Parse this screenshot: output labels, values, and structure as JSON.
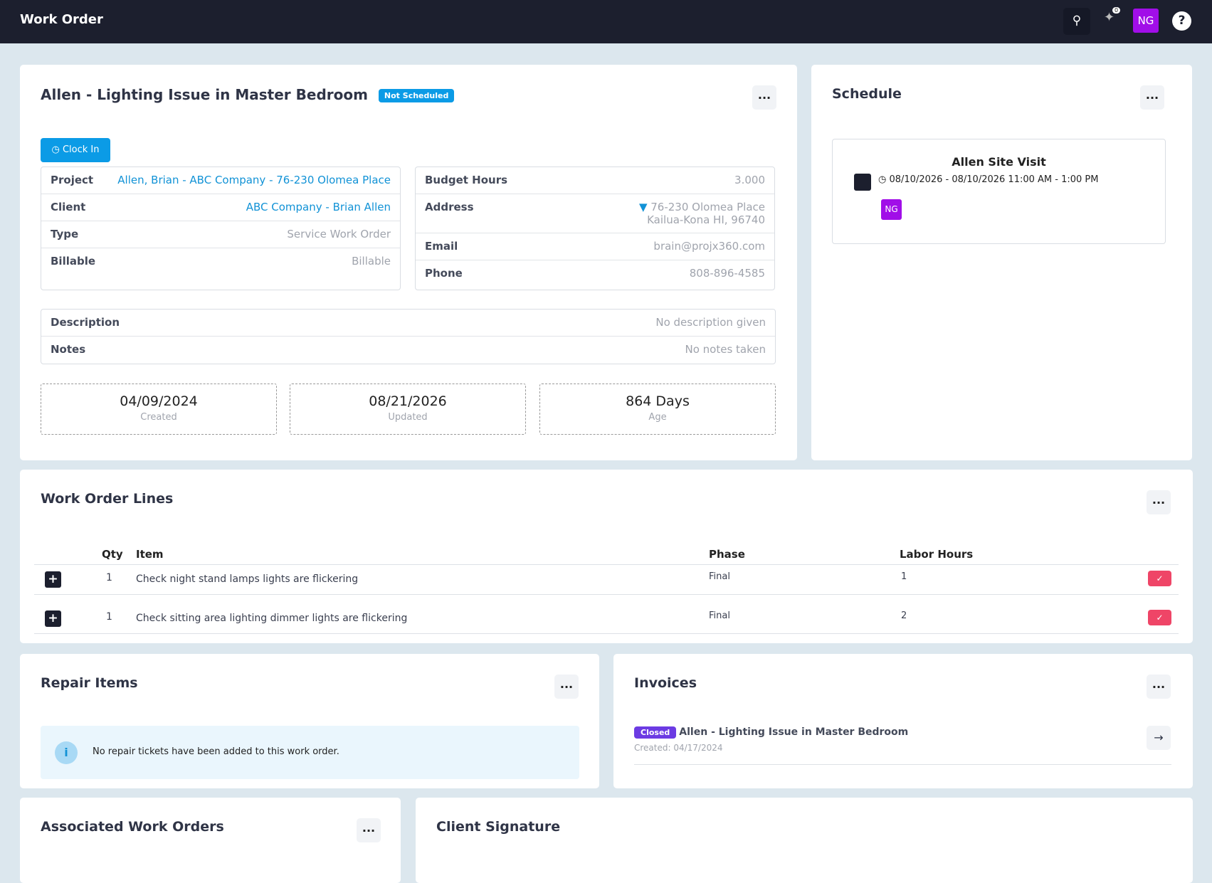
{
  "header": {
    "title": "Work Order",
    "notification_count": "0",
    "user_initials": "NG"
  },
  "work_order": {
    "title": "Allen - Lighting Issue in Master Bedroom",
    "status": "Not Scheduled",
    "clock_in": "Clock In",
    "details_left": [
      {
        "label": "Project",
        "value": "Allen, Brian - ABC Company - 76-230 Olomea Place"
      },
      {
        "label": "Client",
        "value": "ABC Company - Brian Allen"
      },
      {
        "label": "Type",
        "value": "Service Work Order"
      },
      {
        "label": "Billable",
        "value": "Billable"
      }
    ],
    "details_right": [
      {
        "label": "Budget Hours",
        "lines": [
          "3.000"
        ]
      },
      {
        "label": "Address",
        "lines": [
          "76-230 Olomea Place",
          "Kailua-Kona HI, 96740"
        ]
      },
      {
        "label": "Email",
        "lines": [
          "brain@projx360.com"
        ]
      },
      {
        "label": "Phone",
        "lines": [
          "808-896-4585"
        ]
      }
    ],
    "notes": [
      {
        "label": "Description",
        "value": "No description given"
      },
      {
        "label": "Notes",
        "value": "No notes taken"
      }
    ],
    "stats": [
      {
        "value": "04/09/2024",
        "label": "Created"
      },
      {
        "value": "08/21/2026",
        "label": "Updated"
      },
      {
        "value": "864 Days",
        "label": "Age"
      }
    ]
  },
  "schedule": {
    "title": "Schedule",
    "event": {
      "title": "Allen Site Visit",
      "time": "08/10/2026 - 08/10/2026 11:00 AM - 1:00 PM",
      "assignee": "NG"
    }
  },
  "lines": {
    "title": "Work Order Lines",
    "columns": [
      "Qty",
      "Item",
      "Phase",
      "Labor Hours"
    ],
    "rows": [
      [
        1,
        "Check night stand lamps lights are flickering",
        "Final",
        1
      ],
      [
        1,
        "Check sitting area lighting dimmer lights are flickering",
        "Final",
        2
      ]
    ]
  },
  "repair_items": {
    "title": "Repair Items",
    "message": "No repair tickets have been added to this work order."
  },
  "invoices": {
    "title": "Invoices",
    "items": [
      {
        "status": "Closed",
        "title": "Allen - Lighting Issue in Master Bedroom",
        "created": "Created: 04/17/2024"
      }
    ]
  },
  "associated": {
    "title": "Associated Work Orders"
  },
  "signature": {
    "title": "Client Signature"
  }
}
